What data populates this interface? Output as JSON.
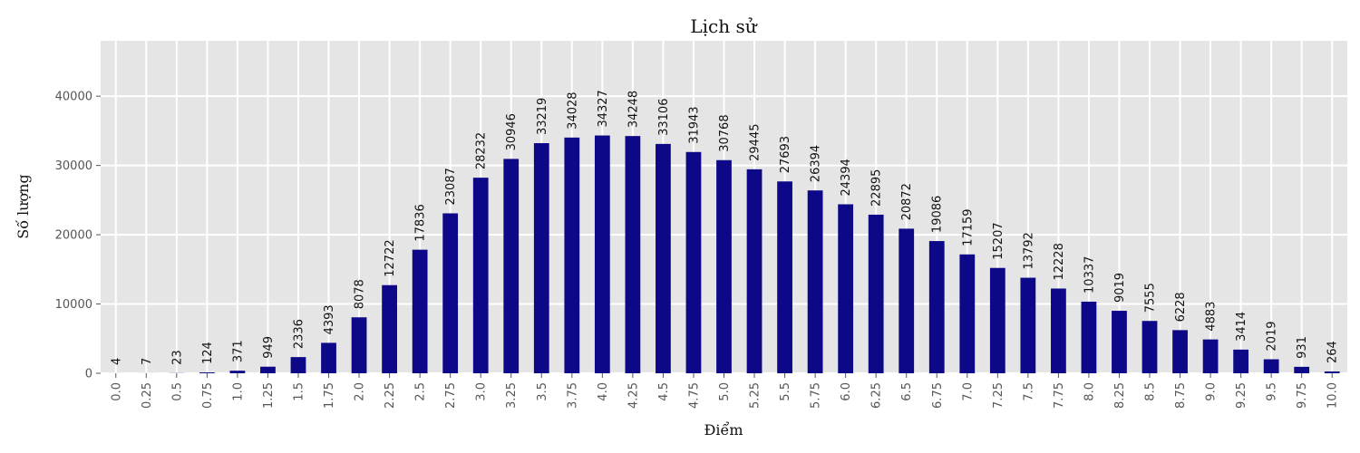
{
  "chart_data": {
    "type": "bar",
    "title": "Lịch sử",
    "xlabel": "Điểm",
    "ylabel": "Số lượng",
    "ylim": [
      0,
      48000
    ],
    "yticks": [
      0,
      10000,
      20000,
      30000,
      40000
    ],
    "grid": true,
    "bar_color": "#0d0887",
    "background_color": "#e5e5e5",
    "categories": [
      "0.0",
      "0.25",
      "0.5",
      "0.75",
      "1.0",
      "1.25",
      "1.5",
      "1.75",
      "2.0",
      "2.25",
      "2.5",
      "2.75",
      "3.0",
      "3.25",
      "3.5",
      "3.75",
      "4.0",
      "4.25",
      "4.5",
      "4.75",
      "5.0",
      "5.25",
      "5.5",
      "5.75",
      "6.0",
      "6.25",
      "6.5",
      "6.75",
      "7.0",
      "7.25",
      "7.5",
      "7.75",
      "8.0",
      "8.25",
      "8.5",
      "8.75",
      "9.0",
      "9.25",
      "9.5",
      "9.75",
      "10.0"
    ],
    "values": [
      4,
      7,
      23,
      124,
      371,
      949,
      2336,
      4393,
      8078,
      12722,
      17836,
      23087,
      28232,
      30946,
      33219,
      34028,
      34327,
      34248,
      33106,
      31943,
      30768,
      29445,
      27693,
      26394,
      24394,
      22895,
      20872,
      19086,
      17159,
      15207,
      13792,
      12228,
      10337,
      9019,
      7555,
      6228,
      4883,
      3414,
      2019,
      931,
      264
    ]
  }
}
